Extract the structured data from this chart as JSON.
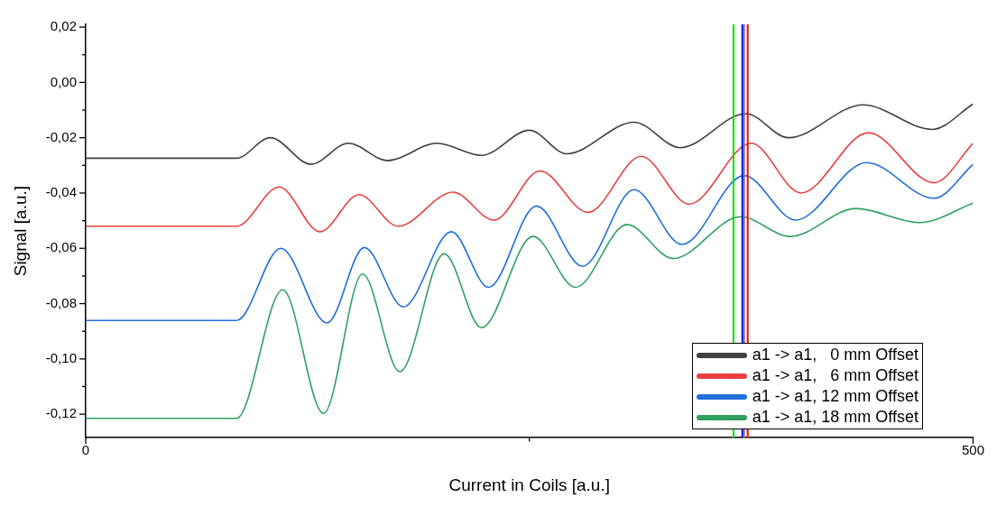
{
  "chart_data": {
    "type": "line",
    "xlabel": "Current in Coils [a.u.]",
    "ylabel": "Signal [a.u.]",
    "xlim": [
      0,
      500
    ],
    "xticks": [
      0,
      {
        "value": 250,
        "label": null
      },
      500
    ],
    "ylim": [
      -0.1285,
      0.021
    ],
    "yticks": [
      {
        "value": 0.02,
        "label": "0,02"
      },
      {
        "value": 0.01,
        "label": null
      },
      {
        "value": 0,
        "label": "0,00"
      },
      {
        "value": -0.01,
        "label": null
      },
      {
        "value": -0.02,
        "label": "-0,02"
      },
      {
        "value": -0.03,
        "label": null
      },
      {
        "value": -0.04,
        "label": "-0,04"
      },
      {
        "value": -0.05,
        "label": null
      },
      {
        "value": -0.06,
        "label": "-0,06"
      },
      {
        "value": -0.07,
        "label": null
      },
      {
        "value": -0.08,
        "label": "-0,08"
      },
      {
        "value": -0.09,
        "label": null
      },
      {
        "value": -0.1,
        "label": "-0,10"
      },
      {
        "value": -0.11,
        "label": null
      },
      {
        "value": -0.12,
        "label": "-0,12"
      }
    ],
    "grid": false,
    "legend": "bottom right",
    "marker": "none",
    "line_style": "solid",
    "series": [
      {
        "name": "a1 -> a1,   0 mm Offset",
        "color": "#404040",
        "x": [
          0,
          85,
          104,
          127,
          148,
          170,
          198,
          223,
          250,
          271,
          309,
          335,
          372,
          396,
          438,
          477,
          500
        ],
        "values": [
          -0.0274,
          -0.0274,
          -0.02,
          -0.0296,
          -0.022,
          -0.0283,
          -0.022,
          -0.0264,
          -0.0173,
          -0.0258,
          -0.0144,
          -0.0236,
          -0.0113,
          -0.02,
          -0.0081,
          -0.017,
          -0.0078
        ]
      },
      {
        "name": "a1 -> a1,   6 mm Offset",
        "color": "#e84040",
        "x": [
          0,
          85,
          109,
          132,
          154,
          176,
          207,
          230,
          256,
          283,
          313,
          340,
          375,
          403,
          441,
          478,
          500
        ],
        "values": [
          -0.052,
          -0.052,
          -0.0378,
          -0.054,
          -0.0406,
          -0.052,
          -0.0397,
          -0.0498,
          -0.032,
          -0.047,
          -0.0267,
          -0.044,
          -0.022,
          -0.04,
          -0.0182,
          -0.0363,
          -0.022
        ]
      },
      {
        "name": "a1 -> a1, 12 mm Offset",
        "color": "#1f6fdb",
        "x": [
          0,
          85,
          110,
          136,
          157,
          179,
          206,
          227,
          254,
          280,
          309,
          336,
          371,
          400,
          440,
          478,
          500
        ],
        "values": [
          -0.0861,
          -0.0861,
          -0.06,
          -0.087,
          -0.0597,
          -0.0812,
          -0.054,
          -0.0741,
          -0.0447,
          -0.0665,
          -0.0388,
          -0.0586,
          -0.0337,
          -0.0498,
          -0.029,
          -0.0419,
          -0.0296
        ]
      },
      {
        "name": "a1 -> a1, 18 mm Offset",
        "color": "#30a060",
        "x": [
          0,
          85,
          111,
          134,
          156,
          177,
          202,
          223,
          252,
          276,
          305,
          331,
          369,
          397,
          434,
          470,
          500
        ],
        "values": [
          -0.1215,
          -0.1215,
          -0.075,
          -0.1197,
          -0.0693,
          -0.1046,
          -0.062,
          -0.0887,
          -0.0557,
          -0.0741,
          -0.0514,
          -0.0637,
          -0.0486,
          -0.0557,
          -0.0456,
          -0.0507,
          -0.0437
        ]
      }
    ],
    "ref_lines": [
      {
        "axis": "x",
        "value": 365,
        "color": "#00e000"
      },
      {
        "axis": "x",
        "value": 370,
        "color": "#0000ff"
      },
      {
        "axis": "x",
        "value": 371,
        "color": "#808080"
      },
      {
        "axis": "x",
        "value": 373,
        "color": "#ff0000"
      }
    ]
  }
}
